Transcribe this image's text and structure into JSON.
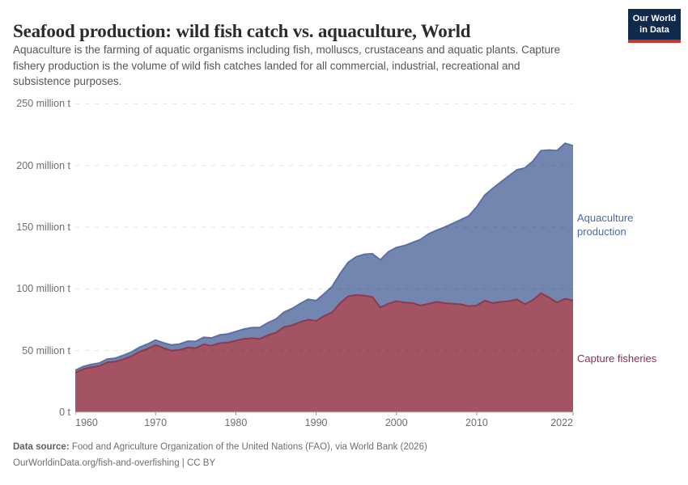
{
  "header": {
    "title": "Seafood production: wild fish catch vs. aquaculture, World",
    "subtitle": "Aquaculture is the farming of aquatic organisms including fish, molluscs, crustaceans and aquatic plants. Capture\nfishery production is the volume of wild fish catches landed for all commercial, industrial, recreational and\nsubsistence purposes.",
    "logo": {
      "text": "Our World\nin Data",
      "bg_color": "#102A4C",
      "accent_color": "#C7362B"
    }
  },
  "chart_data": {
    "type": "area",
    "stacked": true,
    "title": "Seafood production: wild fish catch vs. aquaculture, World",
    "xlabel": "",
    "ylabel": "million tonnes",
    "xlim": [
      1960,
      2022
    ],
    "ylim": [
      0,
      250
    ],
    "grid": "dashed",
    "legend_position": "right-of-plot",
    "x": [
      1960,
      1961,
      1962,
      1963,
      1964,
      1965,
      1966,
      1967,
      1968,
      1969,
      1970,
      1971,
      1972,
      1973,
      1974,
      1975,
      1976,
      1977,
      1978,
      1979,
      1980,
      1981,
      1982,
      1983,
      1984,
      1985,
      1986,
      1987,
      1988,
      1989,
      1990,
      1991,
      1992,
      1993,
      1994,
      1995,
      1996,
      1997,
      1998,
      1999,
      2000,
      2001,
      2002,
      2003,
      2004,
      2005,
      2006,
      2007,
      2008,
      2009,
      2010,
      2011,
      2012,
      2013,
      2014,
      2015,
      2016,
      2017,
      2018,
      2019,
      2020,
      2021,
      2022
    ],
    "series": [
      {
        "name": "Capture fisheries",
        "label_display": "Capture fisheries",
        "fill": "#A35361",
        "stroke": "#8D3A4E",
        "label_color": "#8E2F46",
        "values": [
          32,
          35,
          36.5,
          37.5,
          40.5,
          41,
          43,
          45.5,
          49,
          51.5,
          54.5,
          52,
          50,
          50.5,
          52.5,
          52,
          55,
          54,
          56,
          56.5,
          58,
          59.5,
          60,
          59.5,
          62.5,
          64.5,
          69,
          70.5,
          73,
          75,
          74,
          78,
          81,
          88.5,
          94,
          95,
          94.5,
          93.5,
          85,
          88,
          90,
          89,
          88.5,
          86.5,
          88,
          89.5,
          88.5,
          88,
          87.5,
          86,
          86.5,
          90.5,
          88.5,
          89.5,
          90,
          91.5,
          87.5,
          91,
          96.5,
          93,
          89,
          92,
          90.5
        ]
      },
      {
        "name": "Aquaculture production",
        "label_display": "Aquaculture\nproduction",
        "fill": "#7286B0",
        "stroke": "#5A71A5",
        "label_color": "#4C6B9E",
        "values": [
          2,
          2.1,
          2.2,
          2.4,
          2.6,
          2.8,
          3.1,
          3.3,
          3.6,
          3.8,
          4,
          4.2,
          4.5,
          4.8,
          5.1,
          5.4,
          5.7,
          6.2,
          6.6,
          7,
          7.4,
          7.9,
          8.5,
          9.2,
          10,
          11,
          12.2,
          13.5,
          15,
          16.5,
          16.5,
          18,
          21,
          24,
          27.5,
          31,
          33.5,
          35,
          38.5,
          42,
          43.5,
          46,
          49,
          53.5,
          56.5,
          58,
          61.5,
          65,
          68.5,
          73,
          80,
          85.5,
          93,
          97,
          101.5,
          105,
          110.5,
          112.5,
          115.5,
          119.5,
          123,
          126,
          125.5
        ]
      }
    ],
    "y_ticks": [
      {
        "v": 0,
        "label": "0 t"
      },
      {
        "v": 50,
        "label": "50 million t"
      },
      {
        "v": 100,
        "label": "100 million t"
      },
      {
        "v": 150,
        "label": "150 million t"
      },
      {
        "v": 200,
        "label": "200 million t"
      },
      {
        "v": 250,
        "label": "250 million t"
      }
    ],
    "x_ticks": [
      {
        "year": 1960,
        "label": "1960"
      },
      {
        "year": 1970,
        "label": "1970"
      },
      {
        "year": 1980,
        "label": "1980"
      },
      {
        "year": 1990,
        "label": "1990"
      },
      {
        "year": 2000,
        "label": "2000"
      },
      {
        "year": 2010,
        "label": "2010"
      },
      {
        "year": 2022,
        "label": "2022"
      }
    ]
  },
  "footer": {
    "source_label": "Data source:",
    "source_text": " Food and Agriculture Organization of the United Nations (FAO), via World Bank (2026)",
    "citation": "OurWorldinData.org/fish-and-overfishing | CC BY"
  }
}
